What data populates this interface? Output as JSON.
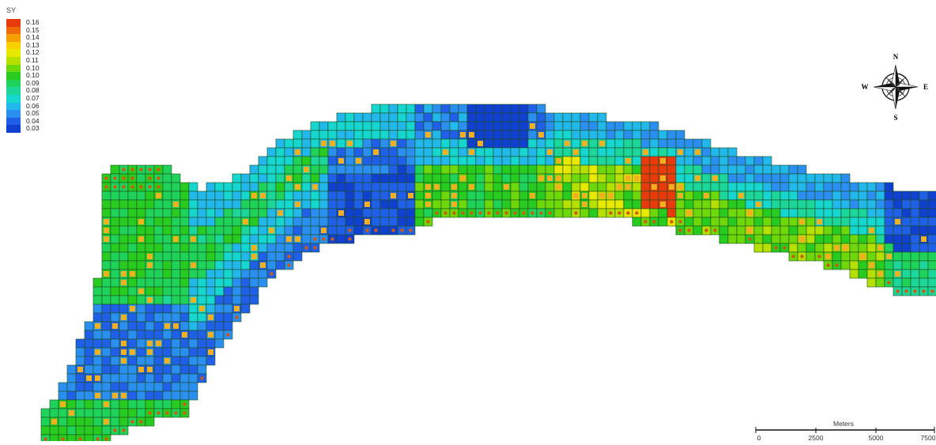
{
  "legend": {
    "title": "SY",
    "items": [
      {
        "label": "0.16",
        "color": "#e83a0c"
      },
      {
        "label": "0.15",
        "color": "#f06a0a"
      },
      {
        "label": "0.14",
        "color": "#f6a000"
      },
      {
        "label": "0.13",
        "color": "#f8d000"
      },
      {
        "label": "0.12",
        "color": "#e8e800"
      },
      {
        "label": "0.11",
        "color": "#b6e000"
      },
      {
        "label": "0.10",
        "color": "#6fd80a"
      },
      {
        "label": "0.10",
        "color": "#28cc20"
      },
      {
        "label": "0.09",
        "color": "#1ed25a"
      },
      {
        "label": "0.08",
        "color": "#1cd69a"
      },
      {
        "label": "0.07",
        "color": "#16d6d0"
      },
      {
        "label": "0.06",
        "color": "#22b8ec"
      },
      {
        "label": "0.05",
        "color": "#2a8ff0"
      },
      {
        "label": "0.04",
        "color": "#2060e8"
      },
      {
        "label": "0.03",
        "color": "#1040d0"
      }
    ]
  },
  "compass": {
    "n": "N",
    "s": "S",
    "e": "E",
    "w": "W"
  },
  "scalebar": {
    "units": "Meters",
    "ticks": [
      "0",
      "2500",
      "5000",
      "7500"
    ]
  },
  "colors": {
    "grid_line": "#1f4d1f",
    "well_cell": "#f0b020",
    "well_dot": "#d05a10"
  }
}
